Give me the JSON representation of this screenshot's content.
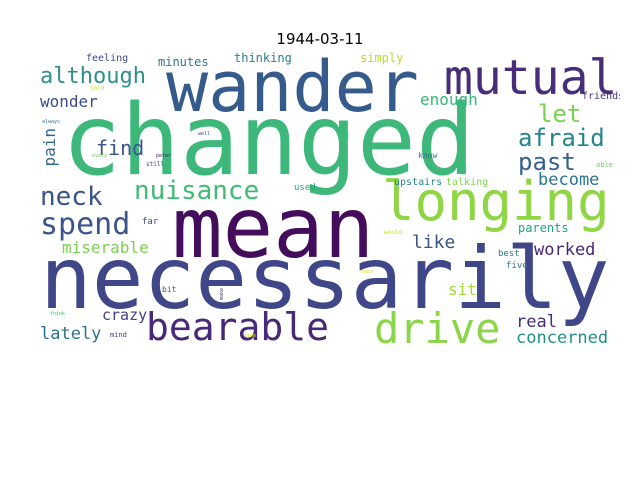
{
  "title": "1944-03-11",
  "words": [
    {
      "text": "changed",
      "color": "#3db87a"
    },
    {
      "text": "necessarily",
      "color": "#3f4788"
    },
    {
      "text": "mean",
      "color": "#440d5c"
    },
    {
      "text": "wander",
      "color": "#355a8c"
    },
    {
      "text": "mutual",
      "color": "#472d7a"
    },
    {
      "text": "longing",
      "color": "#8fd645"
    },
    {
      "text": "bearable",
      "color": "#482878"
    },
    {
      "text": "drive",
      "color": "#8ad548"
    },
    {
      "text": "nuisance",
      "color": "#3ebc73"
    },
    {
      "text": "spend",
      "color": "#39568c"
    },
    {
      "text": "neck",
      "color": "#3a538b"
    },
    {
      "text": "although",
      "color": "#2e8f8c"
    },
    {
      "text": "afraid",
      "color": "#25858e"
    },
    {
      "text": "let",
      "color": "#7ad151"
    },
    {
      "text": "past",
      "color": "#355f8d"
    },
    {
      "text": "find",
      "color": "#39568c"
    },
    {
      "text": "pain",
      "color": "#31688e"
    },
    {
      "text": "wonder",
      "color": "#3d4d8a"
    },
    {
      "text": "miserable",
      "color": "#7ad151"
    },
    {
      "text": "like",
      "color": "#3b528b"
    },
    {
      "text": "worked",
      "color": "#482677"
    },
    {
      "text": "become",
      "color": "#2b758e"
    },
    {
      "text": "enough",
      "color": "#35b779"
    },
    {
      "text": "crazy",
      "color": "#433e85"
    },
    {
      "text": "lately",
      "color": "#2c728e"
    },
    {
      "text": "sit",
      "color": "#a2da37"
    },
    {
      "text": "real",
      "color": "#472c7a"
    },
    {
      "text": "concerned",
      "color": "#21908d"
    },
    {
      "text": "parents",
      "color": "#1fa187"
    },
    {
      "text": "thinking",
      "color": "#277f8e"
    },
    {
      "text": "minutes",
      "color": "#2a788e"
    },
    {
      "text": "simply",
      "color": "#b5de2b"
    },
    {
      "text": "feeling",
      "color": "#3e4989"
    },
    {
      "text": "friends",
      "color": "#46327e"
    },
    {
      "text": "upstairs",
      "color": "#24868e"
    },
    {
      "text": "talking",
      "color": "#7fd34e"
    },
    {
      "text": "used",
      "color": "#20a386"
    },
    {
      "text": "far",
      "color": "#3e4a89"
    },
    {
      "text": "best",
      "color": "#2a788e"
    },
    {
      "text": "five",
      "color": "#297b8e"
    },
    {
      "text": "bit",
      "color": "#3b528b"
    },
    {
      "text": "know",
      "color": "#2d718e"
    },
    {
      "text": "would",
      "color": "#c2df23"
    },
    {
      "text": "able",
      "color": "#67cc5c"
    },
    {
      "text": "always",
      "color": "#2c738e"
    },
    {
      "text": "told",
      "color": "#d8e219"
    },
    {
      "text": "still",
      "color": "#424086"
    },
    {
      "text": "well",
      "color": "#3e4a89"
    },
    {
      "text": "get",
      "color": "#3aba76"
    },
    {
      "text": "peter",
      "color": "#481a6c"
    },
    {
      "text": "every",
      "color": "#6ccd5a"
    },
    {
      "text": "mind",
      "color": "#3f4889"
    },
    {
      "text": "make",
      "color": "#414487"
    },
    {
      "text": "think",
      "color": "#3dbc74"
    },
    {
      "text": "time",
      "color": "#d2e21b"
    },
    {
      "text": "back",
      "color": "#e5e419"
    }
  ]
}
